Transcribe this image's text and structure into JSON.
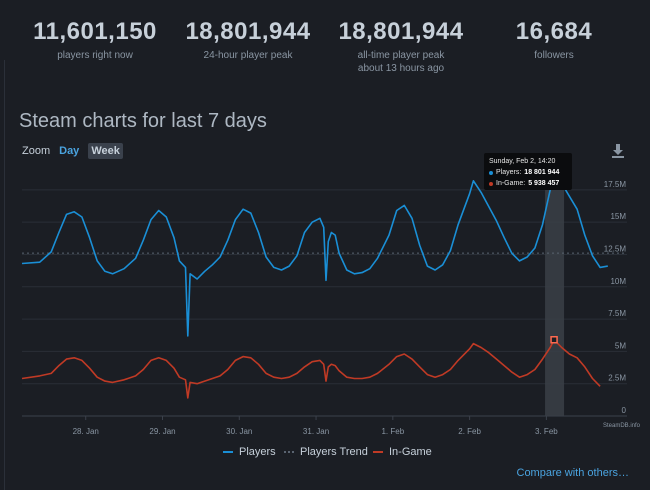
{
  "stats": [
    {
      "value": "11,601,150",
      "label": "players right now",
      "sub": ""
    },
    {
      "value": "18,801,944",
      "label": "24-hour player peak",
      "sub": ""
    },
    {
      "value": "18,801,944",
      "label": "all-time player peak",
      "sub": "about 13 hours ago"
    },
    {
      "value": "16,684",
      "label": "followers",
      "sub": ""
    }
  ],
  "title": "Steam charts for last 7 days",
  "zoom": {
    "label": "Zoom",
    "day": "Day",
    "week": "Week"
  },
  "tooltip": {
    "date": "Sunday, Feb 2, 14:20",
    "players_label": "Players:",
    "players_value": "18 801 944",
    "ingame_label": "In-Game:",
    "ingame_value": "5 938 457"
  },
  "legend": {
    "players": "Players",
    "trend": "Players Trend",
    "ingame": "In-Game"
  },
  "compare": "Compare with others…",
  "credit": "SteamDB.info",
  "colors": {
    "players": "#1a8fd6",
    "ingame": "#c03a25",
    "trend": "#5a6471",
    "highlight": "#3a3f46"
  },
  "chart_data": {
    "type": "line",
    "x_ticks": [
      "28. Jan",
      "29. Jan",
      "30. Jan",
      "31. Jan",
      "1. Feb",
      "2. Feb",
      "3. Feb"
    ],
    "y_ticks": [
      "0",
      "2.5M",
      "5M",
      "7.5M",
      "10M",
      "12.5M",
      "15M",
      "17.5M"
    ],
    "ylim": [
      0,
      19500000
    ],
    "x_range_days": [
      -0.83,
      7.05
    ],
    "series": [
      {
        "name": "Players",
        "points": [
          [
            -0.83,
            11.8
          ],
          [
            -0.6,
            11.9
          ],
          [
            -0.45,
            12.7
          ],
          [
            -0.35,
            14.2
          ],
          [
            -0.25,
            15.6
          ],
          [
            -0.15,
            15.8
          ],
          [
            -0.05,
            15.4
          ],
          [
            0.05,
            13.8
          ],
          [
            0.15,
            12.0
          ],
          [
            0.25,
            11.2
          ],
          [
            0.35,
            11.0
          ],
          [
            0.5,
            11.4
          ],
          [
            0.65,
            12.2
          ],
          [
            0.75,
            13.6
          ],
          [
            0.85,
            15.2
          ],
          [
            0.95,
            15.9
          ],
          [
            1.05,
            15.4
          ],
          [
            1.15,
            13.8
          ],
          [
            1.22,
            12.0
          ],
          [
            1.3,
            11.5
          ],
          [
            1.33,
            6.2
          ],
          [
            1.36,
            11.0
          ],
          [
            1.45,
            10.6
          ],
          [
            1.55,
            11.2
          ],
          [
            1.65,
            11.7
          ],
          [
            1.75,
            12.3
          ],
          [
            1.85,
            13.6
          ],
          [
            1.95,
            15.2
          ],
          [
            2.05,
            16.0
          ],
          [
            2.15,
            15.7
          ],
          [
            2.25,
            14.2
          ],
          [
            2.35,
            12.3
          ],
          [
            2.45,
            11.5
          ],
          [
            2.55,
            11.3
          ],
          [
            2.65,
            11.6
          ],
          [
            2.75,
            12.4
          ],
          [
            2.85,
            14.2
          ],
          [
            2.95,
            15.0
          ],
          [
            3.05,
            15.3
          ],
          [
            3.1,
            14.6
          ],
          [
            3.13,
            10.5
          ],
          [
            3.16,
            13.5
          ],
          [
            3.2,
            14.2
          ],
          [
            3.25,
            14.0
          ],
          [
            3.3,
            12.6
          ],
          [
            3.4,
            11.3
          ],
          [
            3.5,
            11.0
          ],
          [
            3.6,
            11.1
          ],
          [
            3.7,
            11.4
          ],
          [
            3.8,
            12.2
          ],
          [
            3.95,
            14.0
          ],
          [
            4.05,
            15.9
          ],
          [
            4.15,
            16.3
          ],
          [
            4.25,
            15.3
          ],
          [
            4.35,
            13.2
          ],
          [
            4.45,
            11.6
          ],
          [
            4.55,
            11.3
          ],
          [
            4.65,
            11.7
          ],
          [
            4.75,
            12.8
          ],
          [
            4.85,
            14.8
          ],
          [
            5.0,
            17.2
          ],
          [
            5.05,
            18.2
          ],
          [
            5.15,
            17.3
          ],
          [
            5.25,
            16.2
          ],
          [
            5.35,
            15.1
          ],
          [
            5.45,
            13.8
          ],
          [
            5.55,
            12.6
          ],
          [
            5.65,
            12.0
          ],
          [
            5.75,
            12.3
          ],
          [
            5.85,
            13.0
          ],
          [
            5.95,
            14.8
          ],
          [
            6.05,
            17.5
          ],
          [
            6.1,
            18.8
          ],
          [
            6.2,
            18.0
          ],
          [
            6.3,
            17.0
          ],
          [
            6.4,
            16.0
          ],
          [
            6.5,
            14.0
          ],
          [
            6.6,
            12.4
          ],
          [
            6.7,
            11.5
          ],
          [
            6.8,
            11.6
          ]
        ]
      },
      {
        "name": "In-Game",
        "points": [
          [
            -0.83,
            2.9
          ],
          [
            -0.6,
            3.1
          ],
          [
            -0.45,
            3.3
          ],
          [
            -0.35,
            3.9
          ],
          [
            -0.25,
            4.4
          ],
          [
            -0.15,
            4.5
          ],
          [
            -0.05,
            4.3
          ],
          [
            0.05,
            3.7
          ],
          [
            0.15,
            3.0
          ],
          [
            0.25,
            2.7
          ],
          [
            0.35,
            2.6
          ],
          [
            0.5,
            2.8
          ],
          [
            0.65,
            3.1
          ],
          [
            0.75,
            3.6
          ],
          [
            0.85,
            4.3
          ],
          [
            0.95,
            4.5
          ],
          [
            1.05,
            4.3
          ],
          [
            1.15,
            3.7
          ],
          [
            1.22,
            3.0
          ],
          [
            1.3,
            2.8
          ],
          [
            1.33,
            1.4
          ],
          [
            1.36,
            2.6
          ],
          [
            1.45,
            2.5
          ],
          [
            1.55,
            2.7
          ],
          [
            1.65,
            2.9
          ],
          [
            1.75,
            3.1
          ],
          [
            1.85,
            3.6
          ],
          [
            1.95,
            4.3
          ],
          [
            2.05,
            4.6
          ],
          [
            2.15,
            4.5
          ],
          [
            2.25,
            4.0
          ],
          [
            2.35,
            3.3
          ],
          [
            2.45,
            3.0
          ],
          [
            2.55,
            2.9
          ],
          [
            2.65,
            3.0
          ],
          [
            2.75,
            3.3
          ],
          [
            2.85,
            3.8
          ],
          [
            2.95,
            4.2
          ],
          [
            3.05,
            4.3
          ],
          [
            3.1,
            4.0
          ],
          [
            3.13,
            2.7
          ],
          [
            3.16,
            3.8
          ],
          [
            3.2,
            4.0
          ],
          [
            3.25,
            3.9
          ],
          [
            3.3,
            3.5
          ],
          [
            3.4,
            3.0
          ],
          [
            3.5,
            2.9
          ],
          [
            3.6,
            2.9
          ],
          [
            3.7,
            3.0
          ],
          [
            3.8,
            3.3
          ],
          [
            3.95,
            4.0
          ],
          [
            4.05,
            4.6
          ],
          [
            4.15,
            4.8
          ],
          [
            4.25,
            4.4
          ],
          [
            4.35,
            3.8
          ],
          [
            4.45,
            3.2
          ],
          [
            4.55,
            3.0
          ],
          [
            4.65,
            3.2
          ],
          [
            4.75,
            3.6
          ],
          [
            4.85,
            4.3
          ],
          [
            5.0,
            5.2
          ],
          [
            5.05,
            5.6
          ],
          [
            5.15,
            5.3
          ],
          [
            5.25,
            4.9
          ],
          [
            5.35,
            4.4
          ],
          [
            5.45,
            3.9
          ],
          [
            5.55,
            3.4
          ],
          [
            5.65,
            3.0
          ],
          [
            5.75,
            3.2
          ],
          [
            5.85,
            3.6
          ],
          [
            5.95,
            4.4
          ],
          [
            6.05,
            5.3
          ],
          [
            6.1,
            5.9
          ],
          [
            6.2,
            5.3
          ],
          [
            6.3,
            4.8
          ],
          [
            6.4,
            4.5
          ],
          [
            6.5,
            3.8
          ],
          [
            6.6,
            2.9
          ],
          [
            6.7,
            2.3
          ]
        ]
      }
    ],
    "trend_value": 12.6,
    "highlight_x": 6.1,
    "grid": true,
    "legend_position": "bottom"
  }
}
